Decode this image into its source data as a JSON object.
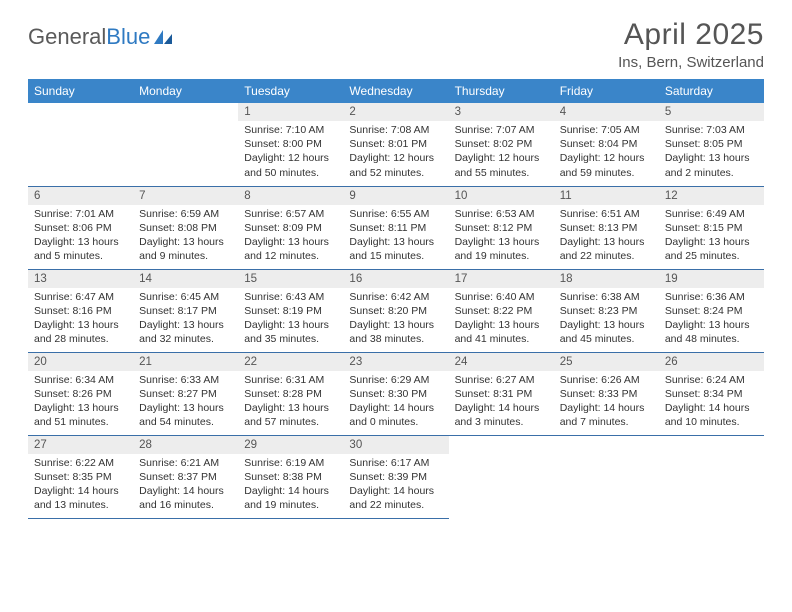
{
  "logo": {
    "text1": "General",
    "text2": "Blue"
  },
  "title": "April 2025",
  "subtitle": "Ins, Bern, Switzerland",
  "colors": {
    "header_bg": "#3a85c9",
    "header_text": "#ffffff",
    "daynum_bg": "#ededed",
    "border": "#3a6fa8",
    "logo_gray": "#5a5a5a",
    "logo_blue": "#2f7ac2"
  },
  "weekdays": [
    "Sunday",
    "Monday",
    "Tuesday",
    "Wednesday",
    "Thursday",
    "Friday",
    "Saturday"
  ],
  "grid": [
    [
      null,
      null,
      {
        "n": "1",
        "sr": "Sunrise: 7:10 AM",
        "ss": "Sunset: 8:00 PM",
        "dl1": "Daylight: 12 hours",
        "dl2": "and 50 minutes."
      },
      {
        "n": "2",
        "sr": "Sunrise: 7:08 AM",
        "ss": "Sunset: 8:01 PM",
        "dl1": "Daylight: 12 hours",
        "dl2": "and 52 minutes."
      },
      {
        "n": "3",
        "sr": "Sunrise: 7:07 AM",
        "ss": "Sunset: 8:02 PM",
        "dl1": "Daylight: 12 hours",
        "dl2": "and 55 minutes."
      },
      {
        "n": "4",
        "sr": "Sunrise: 7:05 AM",
        "ss": "Sunset: 8:04 PM",
        "dl1": "Daylight: 12 hours",
        "dl2": "and 59 minutes."
      },
      {
        "n": "5",
        "sr": "Sunrise: 7:03 AM",
        "ss": "Sunset: 8:05 PM",
        "dl1": "Daylight: 13 hours",
        "dl2": "and 2 minutes."
      }
    ],
    [
      {
        "n": "6",
        "sr": "Sunrise: 7:01 AM",
        "ss": "Sunset: 8:06 PM",
        "dl1": "Daylight: 13 hours",
        "dl2": "and 5 minutes."
      },
      {
        "n": "7",
        "sr": "Sunrise: 6:59 AM",
        "ss": "Sunset: 8:08 PM",
        "dl1": "Daylight: 13 hours",
        "dl2": "and 9 minutes."
      },
      {
        "n": "8",
        "sr": "Sunrise: 6:57 AM",
        "ss": "Sunset: 8:09 PM",
        "dl1": "Daylight: 13 hours",
        "dl2": "and 12 minutes."
      },
      {
        "n": "9",
        "sr": "Sunrise: 6:55 AM",
        "ss": "Sunset: 8:11 PM",
        "dl1": "Daylight: 13 hours",
        "dl2": "and 15 minutes."
      },
      {
        "n": "10",
        "sr": "Sunrise: 6:53 AM",
        "ss": "Sunset: 8:12 PM",
        "dl1": "Daylight: 13 hours",
        "dl2": "and 19 minutes."
      },
      {
        "n": "11",
        "sr": "Sunrise: 6:51 AM",
        "ss": "Sunset: 8:13 PM",
        "dl1": "Daylight: 13 hours",
        "dl2": "and 22 minutes."
      },
      {
        "n": "12",
        "sr": "Sunrise: 6:49 AM",
        "ss": "Sunset: 8:15 PM",
        "dl1": "Daylight: 13 hours",
        "dl2": "and 25 minutes."
      }
    ],
    [
      {
        "n": "13",
        "sr": "Sunrise: 6:47 AM",
        "ss": "Sunset: 8:16 PM",
        "dl1": "Daylight: 13 hours",
        "dl2": "and 28 minutes."
      },
      {
        "n": "14",
        "sr": "Sunrise: 6:45 AM",
        "ss": "Sunset: 8:17 PM",
        "dl1": "Daylight: 13 hours",
        "dl2": "and 32 minutes."
      },
      {
        "n": "15",
        "sr": "Sunrise: 6:43 AM",
        "ss": "Sunset: 8:19 PM",
        "dl1": "Daylight: 13 hours",
        "dl2": "and 35 minutes."
      },
      {
        "n": "16",
        "sr": "Sunrise: 6:42 AM",
        "ss": "Sunset: 8:20 PM",
        "dl1": "Daylight: 13 hours",
        "dl2": "and 38 minutes."
      },
      {
        "n": "17",
        "sr": "Sunrise: 6:40 AM",
        "ss": "Sunset: 8:22 PM",
        "dl1": "Daylight: 13 hours",
        "dl2": "and 41 minutes."
      },
      {
        "n": "18",
        "sr": "Sunrise: 6:38 AM",
        "ss": "Sunset: 8:23 PM",
        "dl1": "Daylight: 13 hours",
        "dl2": "and 45 minutes."
      },
      {
        "n": "19",
        "sr": "Sunrise: 6:36 AM",
        "ss": "Sunset: 8:24 PM",
        "dl1": "Daylight: 13 hours",
        "dl2": "and 48 minutes."
      }
    ],
    [
      {
        "n": "20",
        "sr": "Sunrise: 6:34 AM",
        "ss": "Sunset: 8:26 PM",
        "dl1": "Daylight: 13 hours",
        "dl2": "and 51 minutes."
      },
      {
        "n": "21",
        "sr": "Sunrise: 6:33 AM",
        "ss": "Sunset: 8:27 PM",
        "dl1": "Daylight: 13 hours",
        "dl2": "and 54 minutes."
      },
      {
        "n": "22",
        "sr": "Sunrise: 6:31 AM",
        "ss": "Sunset: 8:28 PM",
        "dl1": "Daylight: 13 hours",
        "dl2": "and 57 minutes."
      },
      {
        "n": "23",
        "sr": "Sunrise: 6:29 AM",
        "ss": "Sunset: 8:30 PM",
        "dl1": "Daylight: 14 hours",
        "dl2": "and 0 minutes."
      },
      {
        "n": "24",
        "sr": "Sunrise: 6:27 AM",
        "ss": "Sunset: 8:31 PM",
        "dl1": "Daylight: 14 hours",
        "dl2": "and 3 minutes."
      },
      {
        "n": "25",
        "sr": "Sunrise: 6:26 AM",
        "ss": "Sunset: 8:33 PM",
        "dl1": "Daylight: 14 hours",
        "dl2": "and 7 minutes."
      },
      {
        "n": "26",
        "sr": "Sunrise: 6:24 AM",
        "ss": "Sunset: 8:34 PM",
        "dl1": "Daylight: 14 hours",
        "dl2": "and 10 minutes."
      }
    ],
    [
      {
        "n": "27",
        "sr": "Sunrise: 6:22 AM",
        "ss": "Sunset: 8:35 PM",
        "dl1": "Daylight: 14 hours",
        "dl2": "and 13 minutes."
      },
      {
        "n": "28",
        "sr": "Sunrise: 6:21 AM",
        "ss": "Sunset: 8:37 PM",
        "dl1": "Daylight: 14 hours",
        "dl2": "and 16 minutes."
      },
      {
        "n": "29",
        "sr": "Sunrise: 6:19 AM",
        "ss": "Sunset: 8:38 PM",
        "dl1": "Daylight: 14 hours",
        "dl2": "and 19 minutes."
      },
      {
        "n": "30",
        "sr": "Sunrise: 6:17 AM",
        "ss": "Sunset: 8:39 PM",
        "dl1": "Daylight: 14 hours",
        "dl2": "and 22 minutes."
      },
      null,
      null,
      null
    ]
  ]
}
